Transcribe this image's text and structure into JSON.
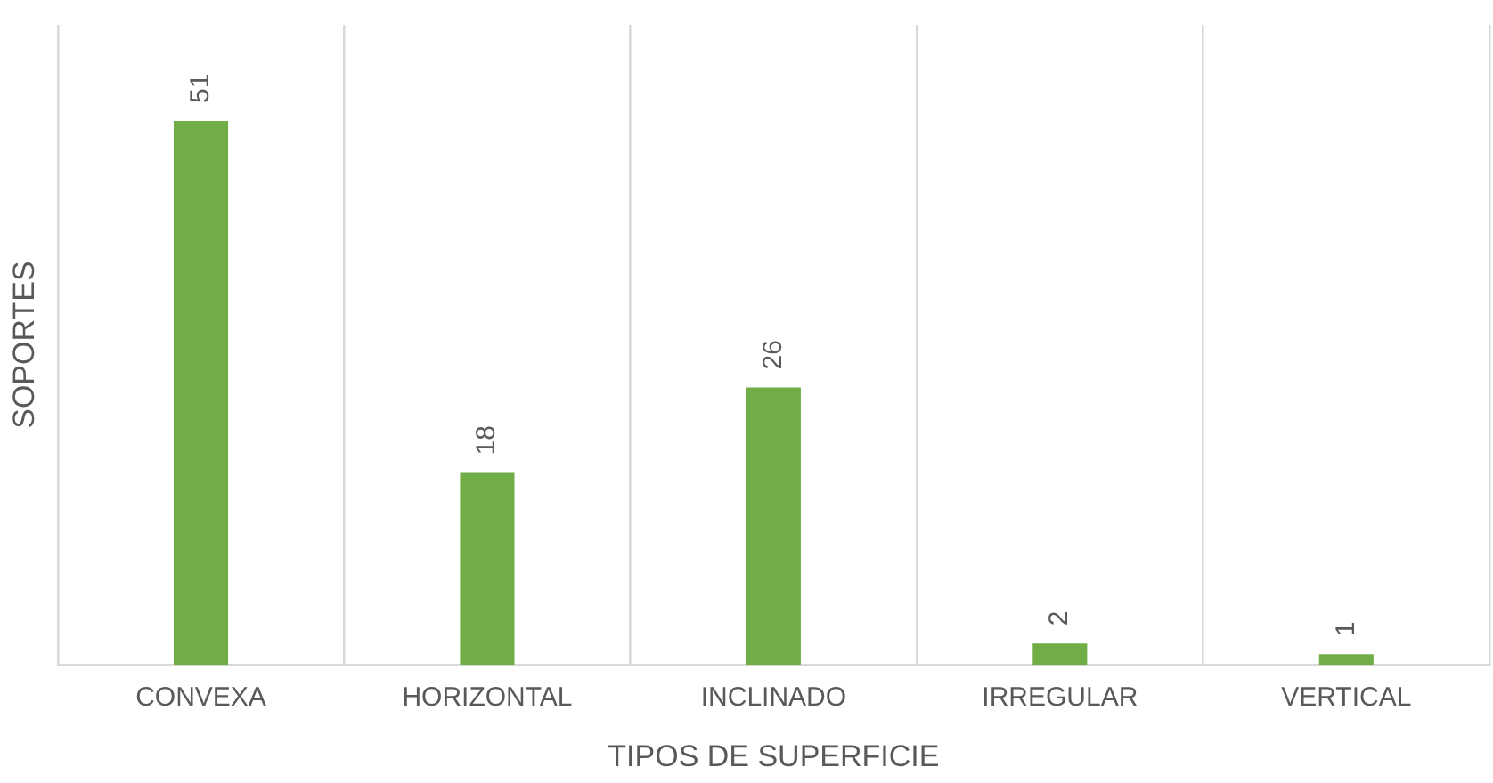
{
  "chart_data": {
    "type": "bar",
    "xlabel": "TIPOS DE SUPERFICIE",
    "ylabel": "SOPORTES",
    "categories": [
      "CONVEXA",
      "HORIZONTAL",
      "INCLINADO",
      "IRREGULAR",
      "VERTICAL"
    ],
    "values": [
      51,
      18,
      26,
      2,
      1
    ],
    "color": "#70ad47",
    "data_labels": true,
    "grid": "x",
    "legend": false
  }
}
